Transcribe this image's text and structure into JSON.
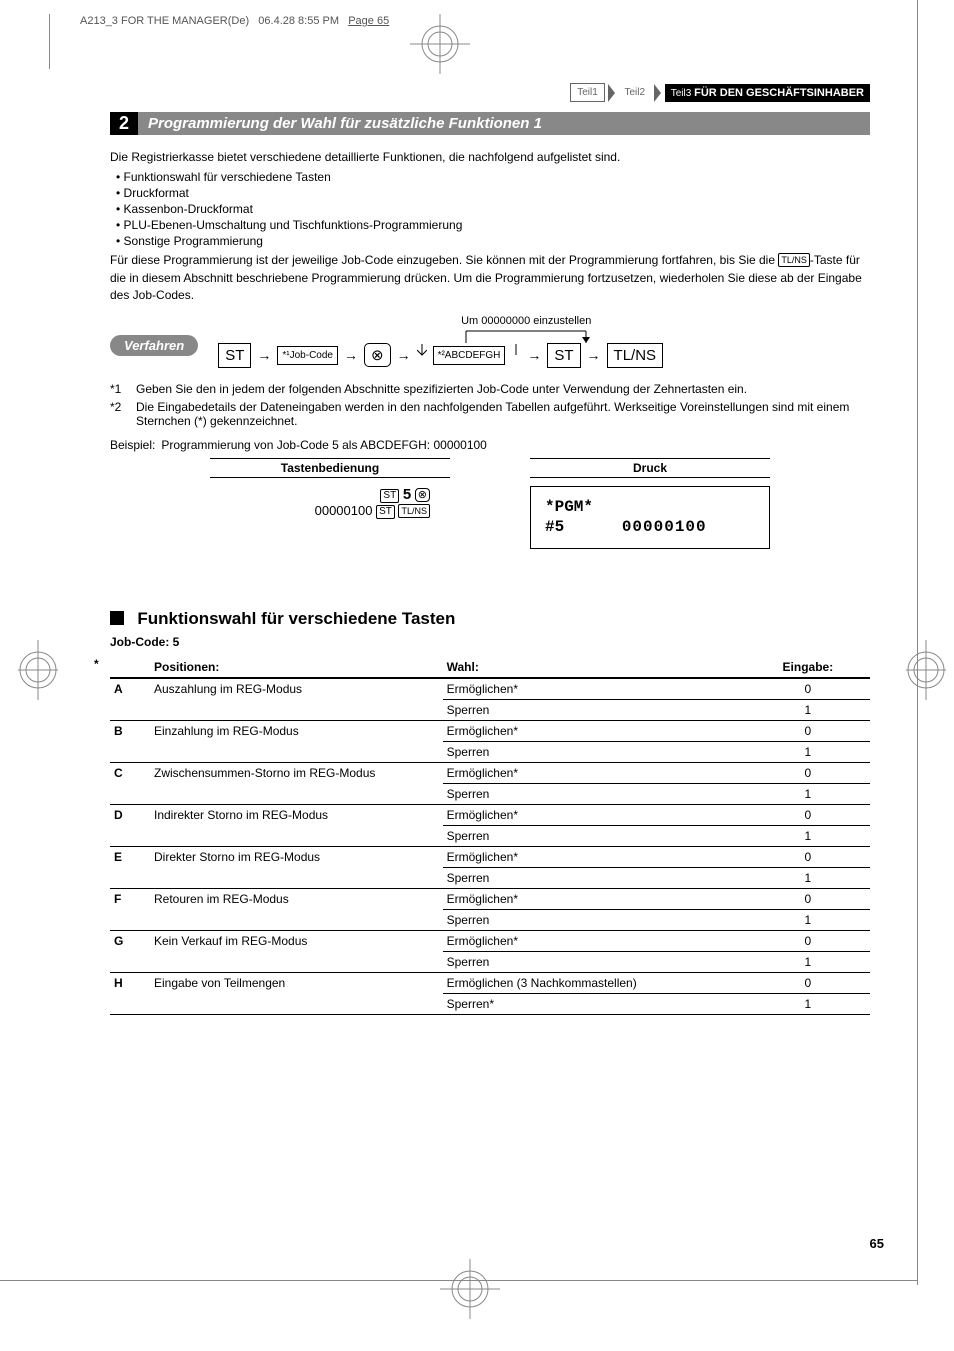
{
  "header": {
    "doc_id": "A213_3 FOR THE MANAGER(De)",
    "date": "06.4.28 8:55 PM",
    "page_label": "Page 65"
  },
  "nav": {
    "teil1": "Teil1",
    "teil2": "Teil2",
    "teil3": "Teil3",
    "teil3_label": "FÜR DEN GESCHÄFTSINHABER"
  },
  "section": {
    "num": "2",
    "title": "Programmierung der Wahl für zusätzliche Funktionen 1"
  },
  "intro": {
    "lead": "Die Registrierkasse bietet verschiedene detaillierte Funktionen, die nachfolgend aufgelistet sind.",
    "bullets": [
      "Funktionswahl für verschiedene Tasten",
      "Druckformat",
      "Kassenbon-Druckformat",
      "PLU-Ebenen-Umschaltung und Tischfunktions-Programmierung",
      "Sonstige Programmierung"
    ],
    "tail_a": "Für diese Programmierung ist der jeweilige Job-Code einzugeben. Sie können mit der Programmierung fortfahren, bis Sie die ",
    "tail_key": "TL/NS",
    "tail_b": "-Taste für die in diesem Abschnitt beschriebene Programmierung drücken. Um die Programmierung fortzusetzen, wiederholen Sie diese ab der Eingabe des Job-Codes."
  },
  "verfahren": {
    "label": "Verfahren",
    "loop_note": "Um 00000000 einzustellen",
    "st": "ST",
    "jobcode": "*¹Job-Code",
    "mult": "⊗",
    "abcdefgh": "*²ABCDEFGH",
    "tlns": "TL/NS"
  },
  "notes": {
    "n1_num": "*1",
    "n1": "Geben Sie den in jedem der folgenden Abschnitte spezifizierten Job-Code unter Verwendung der Zehnertasten ein.",
    "n2_num": "*2",
    "n2": "Die Eingabedetails der Dateneingaben werden in den nachfolgenden Tabellen aufgeführt. Werkseitige Voreinstellungen sind mit einem Sternchen (*) gekennzeichnet."
  },
  "beispiel": {
    "label": "Beispiel:",
    "text": "Programmierung von Job-Code 5 als ABCDEFGH: 00000100",
    "tasten_hdr": "Tastenbedienung",
    "druck_hdr": "Druck",
    "tasten_l1_a": "ST",
    "tasten_l1_b": "5",
    "tasten_l1_c": "⊗",
    "tasten_l2_a": "00000100",
    "tasten_l2_b": "ST",
    "tasten_l2_c": "TL/NS",
    "druck_l1": "*PGM*",
    "druck_l2a": "#5",
    "druck_l2b": "00000100"
  },
  "subsection": {
    "title": "Funktionswahl für verschiedene Tasten",
    "jobcode": "Job-Code: 5"
  },
  "table": {
    "hdr_pos": "Positionen:",
    "hdr_wahl": "Wahl:",
    "hdr_ein": "Eingabe:",
    "rows": [
      {
        "l": "A",
        "pos": "Auszahlung im REG-Modus",
        "w1": "Ermöglichen*",
        "e1": "0",
        "w2": "Sperren",
        "e2": "1"
      },
      {
        "l": "B",
        "pos": "Einzahlung im REG-Modus",
        "w1": "Ermöglichen*",
        "e1": "0",
        "w2": "Sperren",
        "e2": "1"
      },
      {
        "l": "C",
        "pos": "Zwischensummen-Storno im REG-Modus",
        "w1": "Ermöglichen*",
        "e1": "0",
        "w2": "Sperren",
        "e2": "1"
      },
      {
        "l": "D",
        "pos": "Indirekter Storno im REG-Modus",
        "w1": "Ermöglichen*",
        "e1": "0",
        "w2": "Sperren",
        "e2": "1"
      },
      {
        "l": "E",
        "pos": "Direkter Storno im REG-Modus",
        "w1": "Ermöglichen*",
        "e1": "0",
        "w2": "Sperren",
        "e2": "1"
      },
      {
        "l": "F",
        "pos": "Retouren im REG-Modus",
        "w1": "Ermöglichen*",
        "e1": "0",
        "w2": "Sperren",
        "e2": "1"
      },
      {
        "l": "G",
        "pos": "Kein Verkauf im REG-Modus",
        "w1": "Ermöglichen*",
        "e1": "0",
        "w2": "Sperren",
        "e2": "1"
      },
      {
        "l": "H",
        "pos": "Eingabe von Teilmengen",
        "w1": "Ermöglichen (3 Nachkommastellen)",
        "e1": "0",
        "w2": "Sperren*",
        "e2": "1"
      }
    ]
  },
  "pagenum": "65",
  "colors": {
    "gray": "#888888",
    "black": "#000000"
  }
}
